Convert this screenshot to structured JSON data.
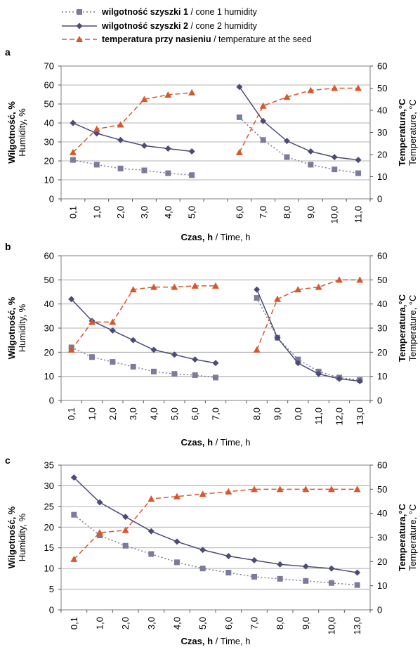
{
  "legend": [
    {
      "bold": "wilgotność szyszki 1",
      "rest": " /  cone 1 humidity",
      "color": "#7b7b9c",
      "dash": "2,3",
      "marker": "square"
    },
    {
      "bold": "wilgotność szyszki 2",
      "rest": "  /  cone 2 humidity",
      "color": "#4b4b78",
      "dash": "",
      "marker": "diamond"
    },
    {
      "bold": "temperatura przy nasieniu",
      "rest": " / temperature at the seed",
      "color": "#d5582e",
      "dash": "7,4",
      "marker": "triangle"
    }
  ],
  "axis_text": {
    "ylabel_bold": "Wilgotność, %",
    "ylabel_normal": "Humidity, %",
    "y2label_bold": "Temperatura,°C",
    "y2label_normal": "Temperature, °C",
    "xlabel_bold": "Czas, h",
    "xlabel_normal": " / Time, h"
  },
  "chart_data": [
    {
      "panel": "a",
      "type": "line",
      "categories": [
        "0,1",
        "1,0",
        "2,0",
        "3,0",
        "4,0",
        "5,0",
        "",
        "6,0",
        "7,0",
        "8,0",
        "9,0",
        "10,0",
        "11,0"
      ],
      "ylim": [
        0,
        70
      ],
      "yticks": [
        0,
        10,
        20,
        30,
        40,
        50,
        60,
        70
      ],
      "y2lim": [
        0,
        60
      ],
      "y2ticks": [
        0,
        10,
        20,
        30,
        40,
        50,
        60
      ],
      "grid": true,
      "series": [
        {
          "name": "cone 1 humidity",
          "axis": "left",
          "values": [
            20.5,
            18,
            16,
            15,
            13.5,
            12.5,
            null,
            43,
            31,
            22,
            18,
            15.5,
            13.5
          ]
        },
        {
          "name": "cone 2 humidity",
          "axis": "left",
          "values": [
            40,
            34.5,
            31,
            28,
            26.5,
            25,
            null,
            59,
            41,
            30.5,
            25,
            22,
            20.5
          ]
        },
        {
          "name": "temperature at the seed",
          "axis": "right",
          "values": [
            21,
            31.5,
            33.5,
            45,
            47,
            48,
            null,
            21,
            42,
            46,
            49,
            50,
            50
          ]
        }
      ]
    },
    {
      "panel": "b",
      "type": "line",
      "categories": [
        "0,1",
        "1,0",
        "2,0",
        "3,0",
        "4,0",
        "5,0",
        "6,0",
        "7,0",
        "",
        "8,0",
        "9,0",
        "0,0",
        "11,0",
        "12,0",
        "13,0"
      ],
      "ylim": [
        0,
        60
      ],
      "yticks": [
        0,
        10,
        20,
        30,
        40,
        50,
        60
      ],
      "y2lim": [
        0,
        60
      ],
      "y2ticks": [
        0,
        10,
        20,
        30,
        40,
        50,
        60
      ],
      "grid": true,
      "series": [
        {
          "name": "cone 1 humidity",
          "axis": "left",
          "values": [
            22,
            18,
            16,
            14,
            12,
            11,
            10.5,
            9.5,
            null,
            42.5,
            26,
            17,
            12,
            9.5,
            8.5
          ]
        },
        {
          "name": "cone 2 humidity",
          "axis": "left",
          "values": [
            42,
            33,
            29,
            25,
            21,
            19,
            17,
            15.5,
            null,
            46,
            26,
            15.5,
            11,
            9,
            8
          ]
        },
        {
          "name": "temperature at the seed",
          "axis": "right",
          "values": [
            21,
            32.5,
            32.5,
            46,
            47,
            47,
            47.5,
            47.5,
            null,
            21,
            42,
            46,
            47,
            50,
            50
          ]
        }
      ]
    },
    {
      "panel": "c",
      "type": "line",
      "categories": [
        "0,1",
        "1,0",
        "2,0",
        "3,0",
        "4,0",
        "5,0",
        "6,0",
        "7,0",
        "8,0",
        "9,0",
        "10,0",
        "13,0"
      ],
      "ylim": [
        0,
        35
      ],
      "yticks": [
        0,
        5,
        10,
        15,
        20,
        25,
        30,
        35
      ],
      "y2lim": [
        0,
        60
      ],
      "y2ticks": [
        0,
        10,
        20,
        30,
        40,
        50,
        60
      ],
      "grid": true,
      "series": [
        {
          "name": "cone 1 humidity",
          "axis": "left",
          "values": [
            23,
            18,
            15.5,
            13.5,
            11.5,
            10,
            9,
            8,
            7.5,
            7,
            6.5,
            6
          ]
        },
        {
          "name": "cone 2 humidity",
          "axis": "left",
          "values": [
            32,
            26,
            22.5,
            19,
            16.5,
            14.5,
            13,
            12,
            11,
            10.5,
            10,
            9
          ]
        },
        {
          "name": "temperature at the seed",
          "axis": "right",
          "values": [
            21,
            32,
            33,
            46,
            47,
            48,
            49,
            50,
            50,
            50,
            50,
            50
          ]
        }
      ]
    }
  ]
}
